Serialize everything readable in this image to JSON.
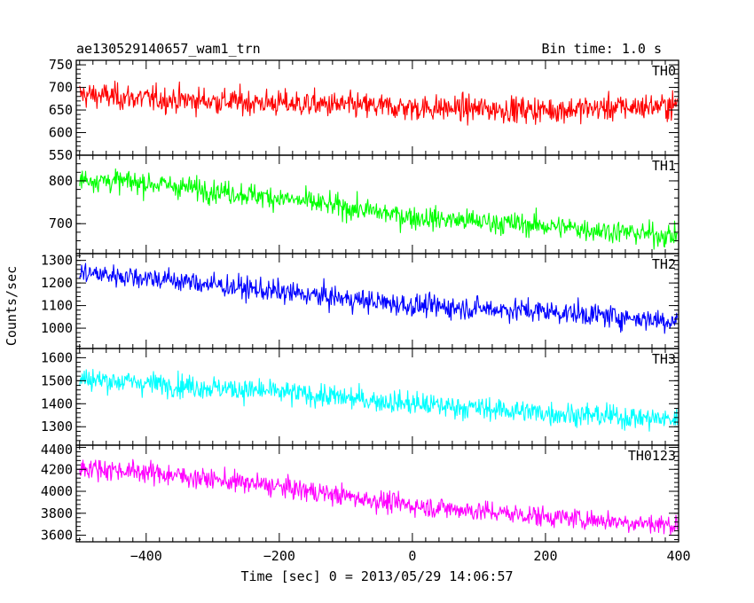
{
  "chart_data": {
    "type": "line",
    "title": "ae130529140657_wam1_trn",
    "subtitle": "Bin time: 1.0 s",
    "xlabel": "Time [sec] 0 = 2013/05/29 14:06:57",
    "ylabel": "Counts/sec",
    "xlim": [
      -505,
      400
    ],
    "x_ticks": [
      -400,
      -200,
      0,
      200,
      400
    ],
    "bin_time": 1.0,
    "panels": [
      {
        "name": "TH0",
        "color": "#ff0000",
        "ylim": [
          550,
          760
        ],
        "y_ticks": [
          550,
          600,
          650,
          700,
          750
        ],
        "trend": [
          [
            -505,
            685
          ],
          [
            -400,
            675
          ],
          [
            -200,
            665
          ],
          [
            0,
            655
          ],
          [
            200,
            650
          ],
          [
            300,
            655
          ],
          [
            400,
            660
          ]
        ],
        "noise": 26
      },
      {
        "name": "TH1",
        "color": "#00ff00",
        "ylim": [
          630,
          860
        ],
        "y_ticks": [
          700,
          800
        ],
        "trend": [
          [
            -505,
            805
          ],
          [
            -400,
            795
          ],
          [
            -200,
            760
          ],
          [
            0,
            715
          ],
          [
            200,
            695
          ],
          [
            400,
            670
          ]
        ],
        "noise": 24
      },
      {
        "name": "TH2",
        "color": "#0000ff",
        "ylim": [
          910,
          1330
        ],
        "y_ticks": [
          1000,
          1100,
          1200,
          1300
        ],
        "trend": [
          [
            -505,
            1245
          ],
          [
            -400,
            1225
          ],
          [
            -200,
            1160
          ],
          [
            0,
            1100
          ],
          [
            200,
            1075
          ],
          [
            400,
            1030
          ]
        ],
        "noise": 45
      },
      {
        "name": "TH3",
        "color": "#00ffff",
        "ylim": [
          1220,
          1640
        ],
        "y_ticks": [
          1300,
          1400,
          1500,
          1600
        ],
        "trend": [
          [
            -505,
            1510
          ],
          [
            -400,
            1490
          ],
          [
            -200,
            1450
          ],
          [
            0,
            1400
          ],
          [
            200,
            1360
          ],
          [
            400,
            1330
          ]
        ],
        "noise": 45
      },
      {
        "name": "TH0123",
        "color": "#ff00ff",
        "ylim": [
          3540,
          4420
        ],
        "y_ticks": [
          3600,
          3800,
          4000,
          4200,
          4400
        ],
        "trend": [
          [
            -505,
            4220
          ],
          [
            -400,
            4175
          ],
          [
            -200,
            4040
          ],
          [
            0,
            3870
          ],
          [
            200,
            3770
          ],
          [
            400,
            3690
          ]
        ],
        "noise": 85
      }
    ]
  }
}
